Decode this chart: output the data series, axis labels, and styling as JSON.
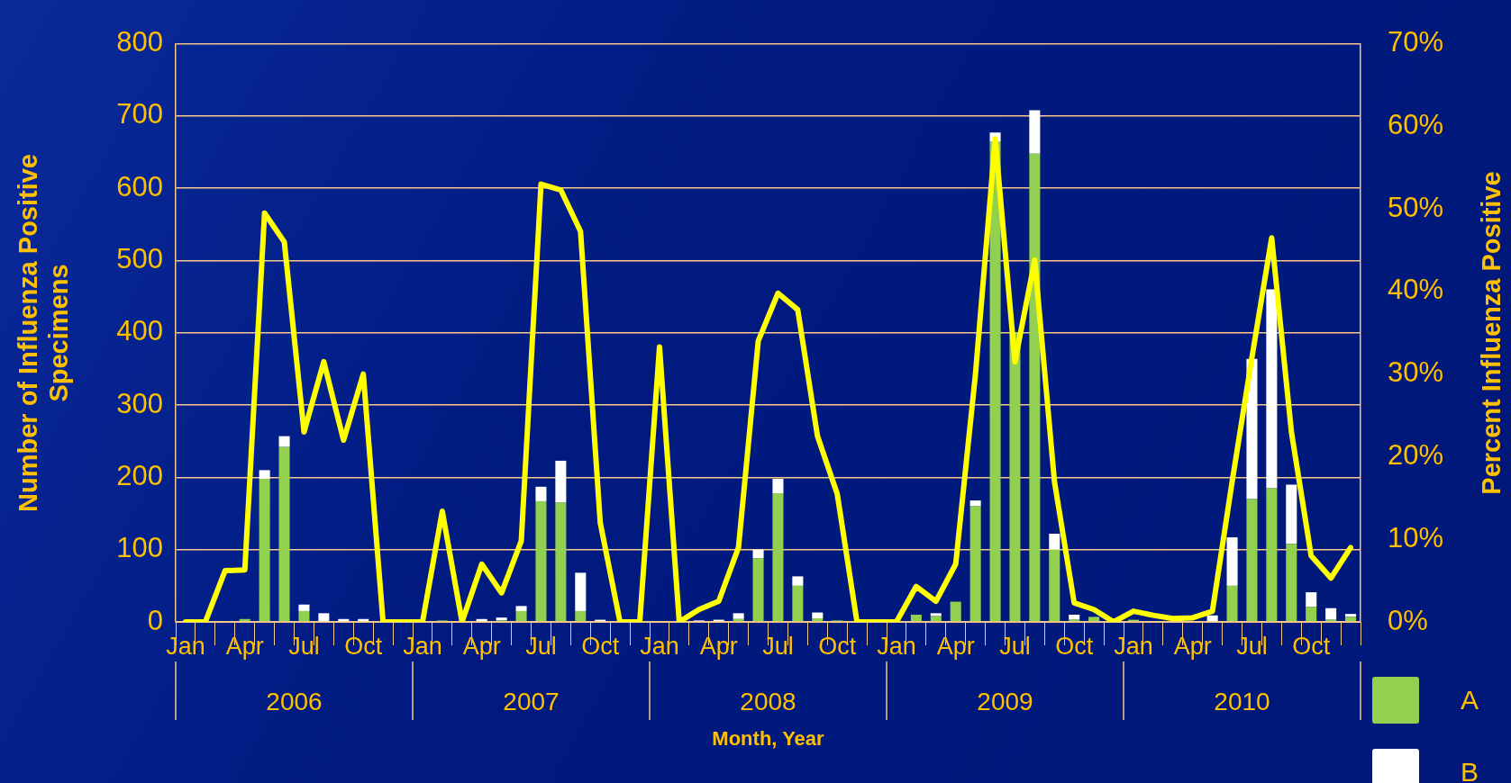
{
  "chart_data": {
    "type": "bar",
    "stacked": true,
    "xlabel": "Month, Year",
    "ylabel": "Number of Influenza Positive Specimens",
    "y2label": "Percent Influenza Positive",
    "categories": [
      "Jan",
      null,
      null,
      "Apr",
      null,
      null,
      "Jul",
      null,
      null,
      "Oct",
      null,
      null,
      "Jan",
      null,
      null,
      "Apr",
      null,
      null,
      "Jul",
      null,
      null,
      "Oct",
      null,
      null,
      "Jan",
      null,
      null,
      "Apr",
      null,
      null,
      "Jul",
      null,
      null,
      "Oct",
      null,
      null,
      "Jan",
      null,
      null,
      "Apr",
      null,
      null,
      "Jul",
      null,
      null,
      "Oct",
      null,
      null,
      "Jan",
      null,
      null,
      "Apr",
      null,
      null,
      "Jul",
      null,
      null,
      "Oct",
      null,
      null
    ],
    "annotations": [
      "2006",
      "2007",
      "2008",
      "2009",
      "2010"
    ],
    "series": [
      {
        "name": "A",
        "color": "#92d050",
        "values": [
          0,
          0,
          null,
          4,
          198,
          242,
          15,
          0,
          0,
          0,
          0,
          0,
          0,
          2,
          0,
          0,
          2,
          15,
          167,
          165,
          15,
          0,
          0,
          0,
          0,
          0,
          0,
          0,
          4,
          88,
          178,
          50,
          5,
          2,
          0,
          0,
          0,
          10,
          8,
          28,
          160,
          665,
          400,
          648,
          100,
          3,
          7,
          0,
          3,
          0,
          0,
          0,
          0,
          50,
          170,
          185,
          108,
          21,
          3,
          7
        ]
      },
      {
        "name": "B",
        "color": "#ffffff",
        "values": [
          0,
          0,
          0,
          0,
          12,
          15,
          9,
          12,
          4,
          4,
          0,
          0,
          0,
          0,
          0,
          4,
          4,
          7,
          20,
          58,
          53,
          3,
          0,
          0,
          1,
          0,
          2,
          3,
          8,
          12,
          20,
          13,
          8,
          0,
          0,
          0,
          0,
          0,
          4,
          0,
          8,
          12,
          null,
          60,
          22,
          7,
          0,
          0,
          0,
          1,
          0,
          0,
          9,
          67,
          194,
          275,
          82,
          20,
          16,
          4
        ]
      },
      {
        "type": "line",
        "axis": "y2",
        "color": "#ffff00",
        "values": [
          0,
          0,
          6.2,
          6.3,
          49.5,
          46,
          23,
          31.5,
          22,
          30,
          0,
          0,
          0,
          13.4,
          0,
          7,
          3.5,
          9.8,
          53,
          52.3,
          47.3,
          12,
          0,
          0,
          33.3,
          0,
          1.5,
          2.5,
          9,
          34,
          39.8,
          37.8,
          22.5,
          15.5,
          0,
          0,
          0,
          4.3,
          2.5,
          7,
          30,
          58.5,
          31.5,
          43.8,
          17,
          2.3,
          1.5,
          0,
          1.3,
          0.8,
          0.4,
          0.5,
          1.3,
          17,
          32,
          46.5,
          23,
          8,
          5.3,
          9
        ]
      }
    ],
    "ylim": [
      0,
      800
    ],
    "yticks": [
      0,
      100,
      200,
      300,
      400,
      500,
      600,
      700,
      800
    ],
    "y2lim": [
      0,
      70
    ],
    "y2ticks": [
      {
        "value": 0,
        "label": "0%"
      },
      {
        "value": 10,
        "label": "10%"
      },
      {
        "value": 20,
        "label": "20%"
      },
      {
        "value": 30,
        "label": "30%"
      },
      {
        "value": 40,
        "label": "40%"
      },
      {
        "value": 50,
        "label": "50%"
      },
      {
        "value": 60,
        "label": "60%"
      },
      {
        "value": 70,
        "label": "70%"
      }
    ],
    "grid": "y",
    "legend": "bottom right",
    "marker": "none",
    "line_style": "solid"
  }
}
